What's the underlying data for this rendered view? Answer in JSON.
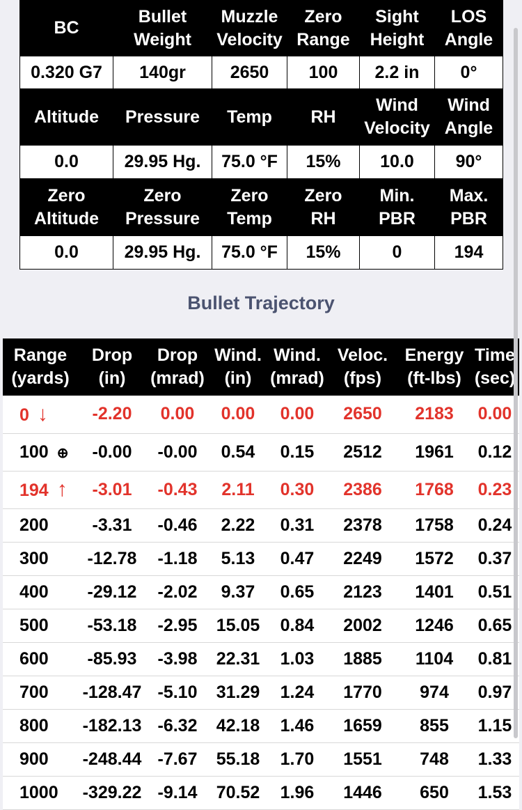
{
  "settings": {
    "table": [
      {
        "header": true,
        "cells": [
          [
            "BC"
          ],
          [
            "Bullet",
            "Weight"
          ],
          [
            "Muzzle",
            "Velocity"
          ],
          [
            "Zero",
            "Range"
          ],
          [
            "Sight",
            "Height"
          ],
          [
            "LOS",
            "Angle"
          ]
        ]
      },
      {
        "header": false,
        "cells": [
          [
            "0.320 G7"
          ],
          [
            "140gr"
          ],
          [
            "2650"
          ],
          [
            "100"
          ],
          [
            "2.2 in"
          ],
          [
            "0°"
          ]
        ]
      },
      {
        "header": true,
        "cells": [
          [
            "Altitude"
          ],
          [
            "Pressure"
          ],
          [
            "Temp"
          ],
          [
            "RH"
          ],
          [
            "Wind",
            "Velocity"
          ],
          [
            "Wind",
            "Angle"
          ]
        ]
      },
      {
        "header": false,
        "cells": [
          [
            "0.0"
          ],
          [
            "29.95 Hg."
          ],
          [
            "75.0 °F"
          ],
          [
            "15%"
          ],
          [
            "10.0"
          ],
          [
            "90°"
          ]
        ]
      },
      {
        "header": true,
        "cells": [
          [
            "Zero",
            "Altitude"
          ],
          [
            "Zero",
            "Pressure"
          ],
          [
            "Zero",
            "Temp"
          ],
          [
            "Zero",
            "RH"
          ],
          [
            "Min.",
            "PBR"
          ],
          [
            "Max.",
            "PBR"
          ]
        ]
      },
      {
        "header": false,
        "cells": [
          [
            "0.0"
          ],
          [
            "29.95 Hg."
          ],
          [
            "75.0 °F"
          ],
          [
            "15%"
          ],
          [
            "0"
          ],
          [
            "194"
          ]
        ]
      }
    ]
  },
  "trajectory": {
    "title": "Bullet Trajectory",
    "headers": [
      [
        "Range",
        "(yards)"
      ],
      [
        "Drop",
        "(in)"
      ],
      [
        "Drop",
        "(mrad)"
      ],
      [
        "Wind.",
        "(in)"
      ],
      [
        "Wind.",
        "(mrad)"
      ],
      [
        "Veloc.",
        "(fps)"
      ],
      [
        "Energy",
        "(ft-lbs)"
      ],
      [
        "Time",
        "(sec)"
      ]
    ],
    "rows": [
      {
        "marker": "↓",
        "color": "#e2332b",
        "cells": [
          "0",
          "-2.20",
          "0.00",
          "0.00",
          "0.00",
          "2650",
          "2183",
          "0.00"
        ]
      },
      {
        "marker": "⊕",
        "cells": [
          "100",
          "-0.00",
          "-0.00",
          "0.54",
          "0.15",
          "2512",
          "1961",
          "0.12"
        ]
      },
      {
        "marker": "↑",
        "color": "#e2332b",
        "cells": [
          "194",
          "-3.01",
          "-0.43",
          "2.11",
          "0.30",
          "2386",
          "1768",
          "0.23"
        ]
      },
      {
        "cells": [
          "200",
          "-3.31",
          "-0.46",
          "2.22",
          "0.31",
          "2378",
          "1758",
          "0.24"
        ]
      },
      {
        "cells": [
          "300",
          "-12.78",
          "-1.18",
          "5.13",
          "0.47",
          "2249",
          "1572",
          "0.37"
        ]
      },
      {
        "cells": [
          "400",
          "-29.12",
          "-2.02",
          "9.37",
          "0.65",
          "2123",
          "1401",
          "0.51"
        ]
      },
      {
        "cells": [
          "500",
          "-53.18",
          "-2.95",
          "15.05",
          "0.84",
          "2002",
          "1246",
          "0.65"
        ]
      },
      {
        "cells": [
          "600",
          "-85.93",
          "-3.98",
          "22.31",
          "1.03",
          "1885",
          "1104",
          "0.81"
        ]
      },
      {
        "cells": [
          "700",
          "-128.47",
          "-5.10",
          "31.29",
          "1.24",
          "1770",
          "974",
          "0.97"
        ]
      },
      {
        "cells": [
          "800",
          "-182.13",
          "-6.32",
          "42.18",
          "1.46",
          "1659",
          "855",
          "1.15"
        ]
      },
      {
        "cells": [
          "900",
          "-248.44",
          "-7.67",
          "55.18",
          "1.70",
          "1551",
          "748",
          "1.33"
        ]
      },
      {
        "cells": [
          "1000",
          "-329.22",
          "-9.14",
          "70.52",
          "1.96",
          "1446",
          "650",
          "1.53"
        ]
      }
    ]
  }
}
